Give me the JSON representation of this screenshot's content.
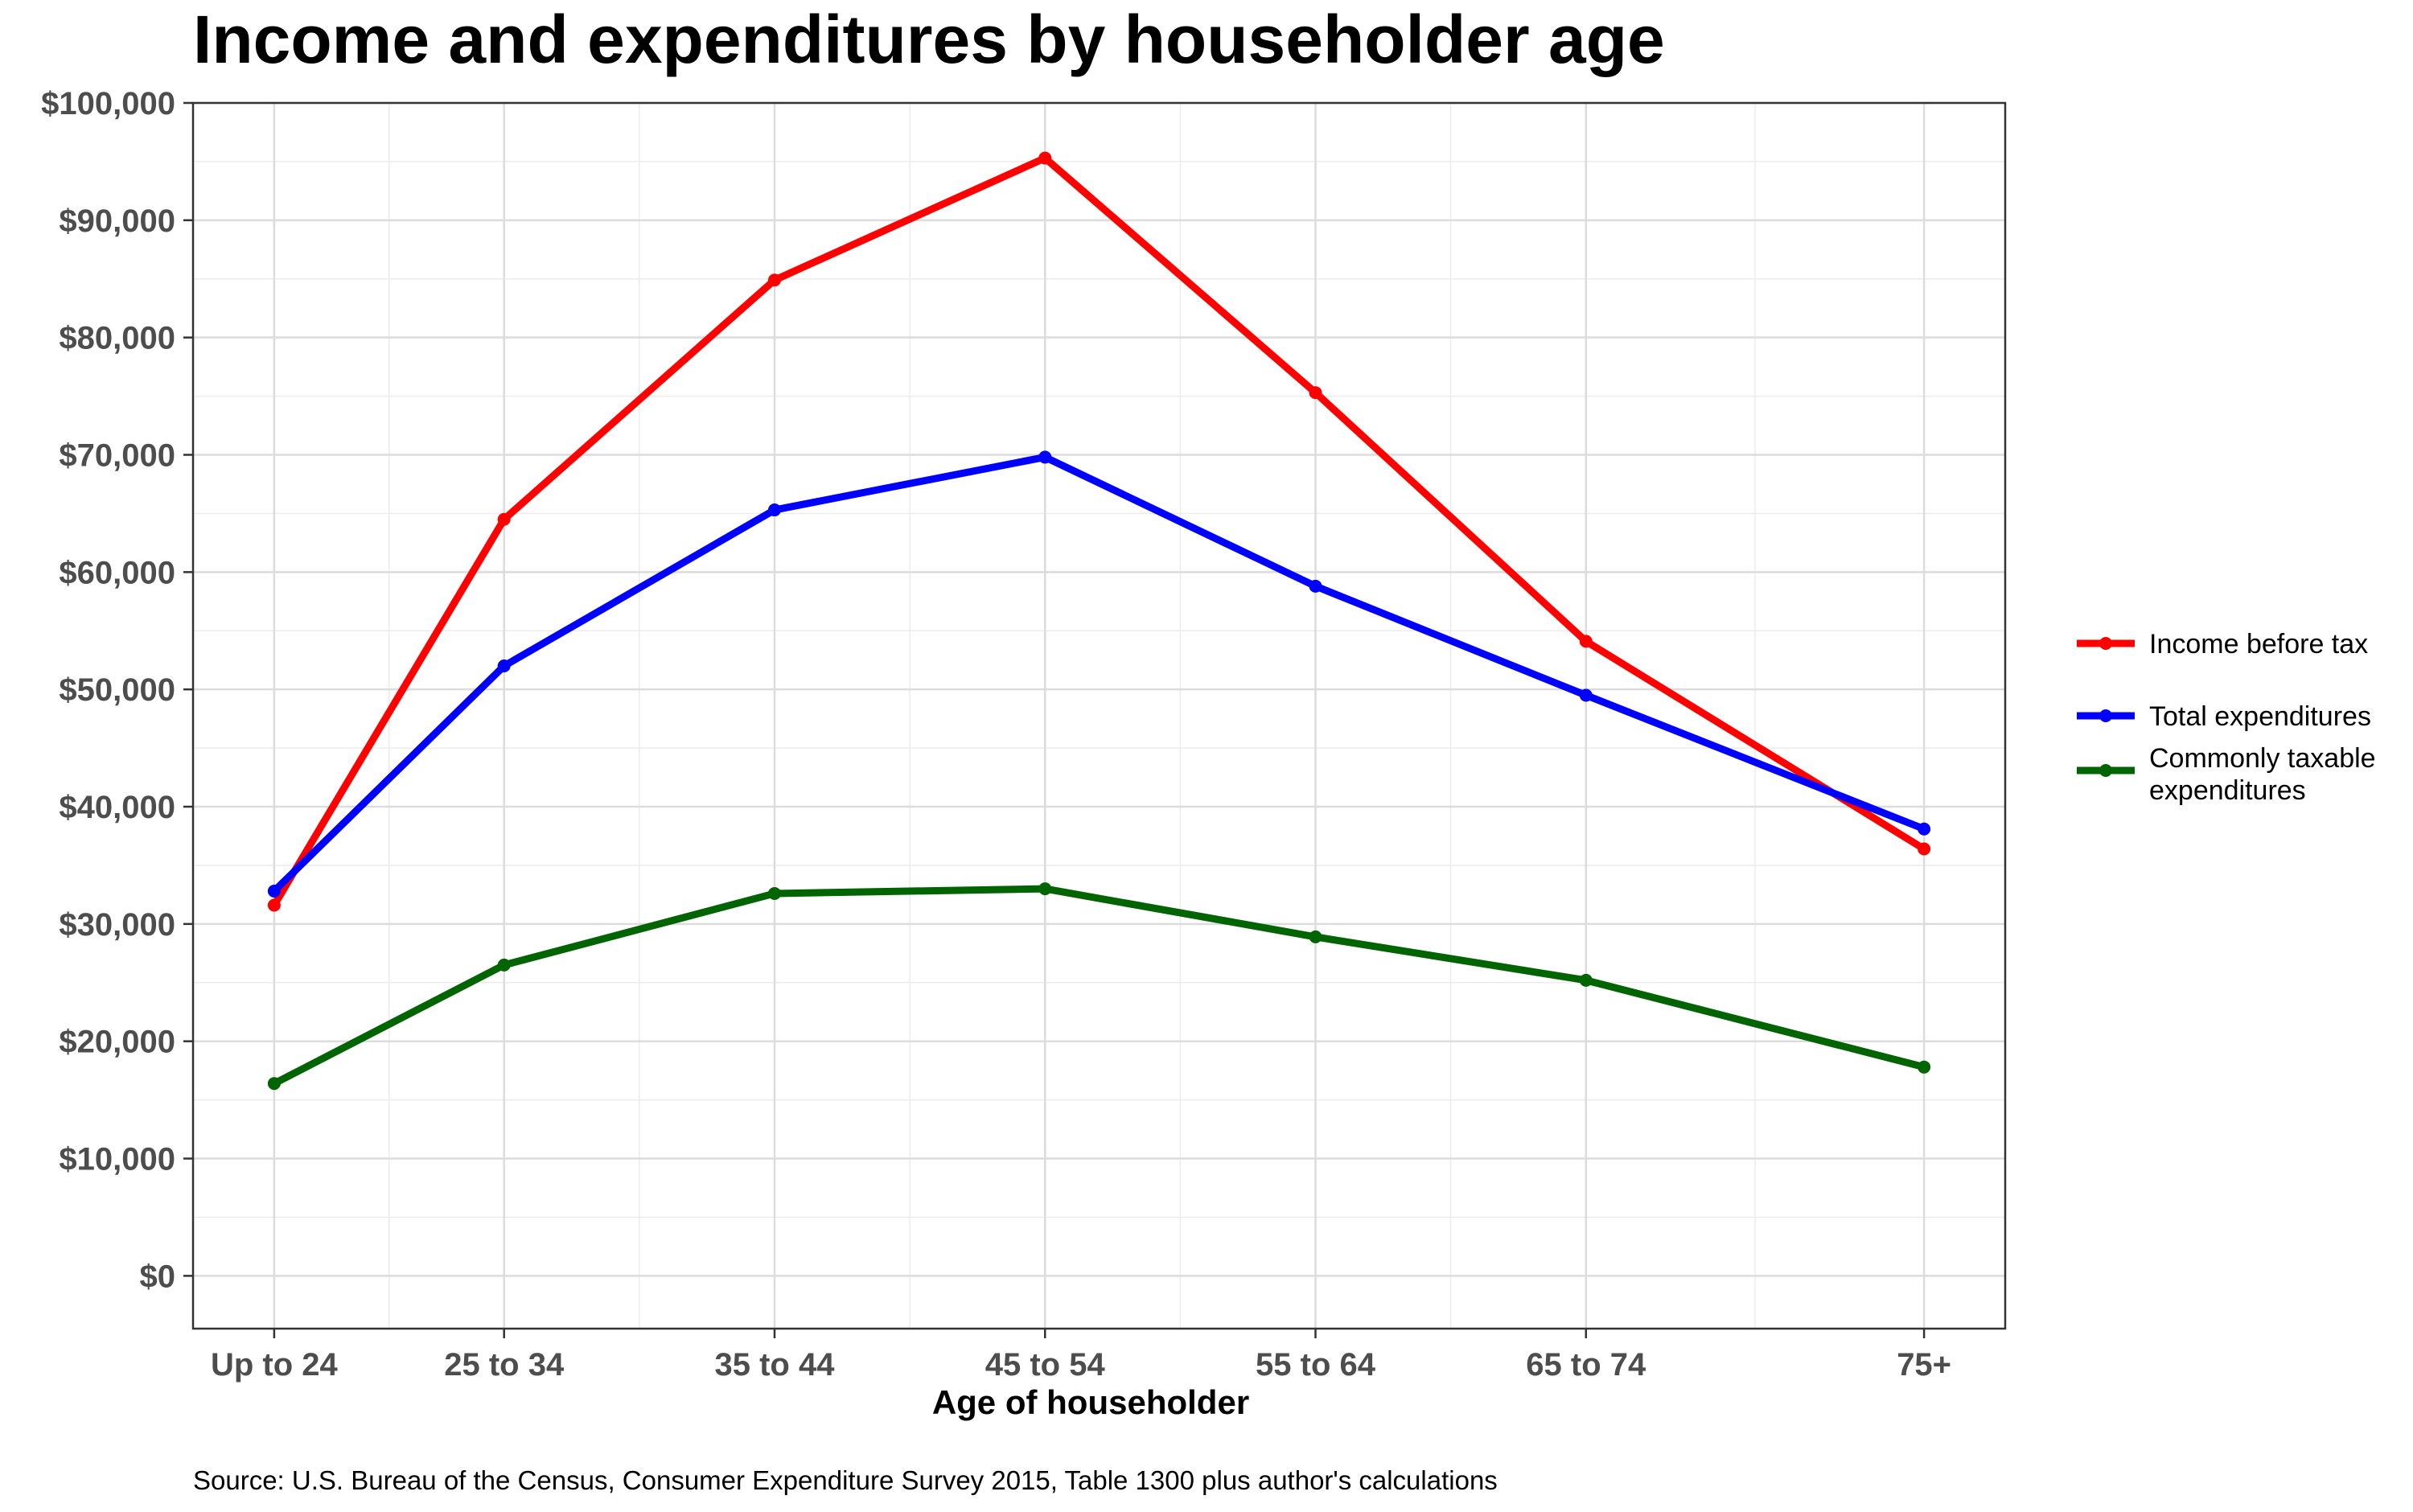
{
  "chart_data": {
    "type": "line",
    "title": "Income and expenditures by householder age",
    "xlabel": "Age of householder",
    "ylabel": "",
    "categories": [
      "Up to 24",
      "25 to 34",
      "35 to 44",
      "45 to 54",
      "55 to 64",
      "65 to 74",
      "75+"
    ],
    "x": [
      21,
      29.5,
      39.5,
      49.5,
      59.5,
      69.5,
      82
    ],
    "xlim": [
      18,
      85
    ],
    "ylim": [
      -4500,
      100000
    ],
    "yticks": [
      0,
      10000,
      20000,
      30000,
      40000,
      50000,
      60000,
      70000,
      80000,
      90000,
      100000
    ],
    "ytick_labels": [
      "$0",
      "$10,000",
      "$20,000",
      "$30,000",
      "$40,000",
      "$50,000",
      "$60,000",
      "$70,000",
      "$80,000",
      "$90,000",
      "$100,000"
    ],
    "grid": true,
    "legend_position": "right",
    "series": [
      {
        "name": "Income before tax",
        "color": "#FF0000",
        "values": [
          31600,
          64500,
          84900,
          95300,
          75300,
          54100,
          36400
        ]
      },
      {
        "name": "Total expenditures",
        "color": "#0000FF",
        "values": [
          32800,
          52000,
          65300,
          69800,
          58800,
          49500,
          38100
        ]
      },
      {
        "name": "Commonly taxable expenditures",
        "color": "#006400",
        "values": [
          16400,
          26500,
          32600,
          33000,
          28900,
          25200,
          17800
        ]
      }
    ],
    "legend": [
      {
        "lines": [
          "Income before tax"
        ]
      },
      {
        "lines": [
          "Total expenditures"
        ]
      },
      {
        "lines": [
          "Commonly taxable",
          "expenditures"
        ]
      }
    ],
    "caption": "Source: U.S. Bureau of the Census, Consumer Expenditure Survey 2015, Table 1300 plus author's calculations"
  }
}
